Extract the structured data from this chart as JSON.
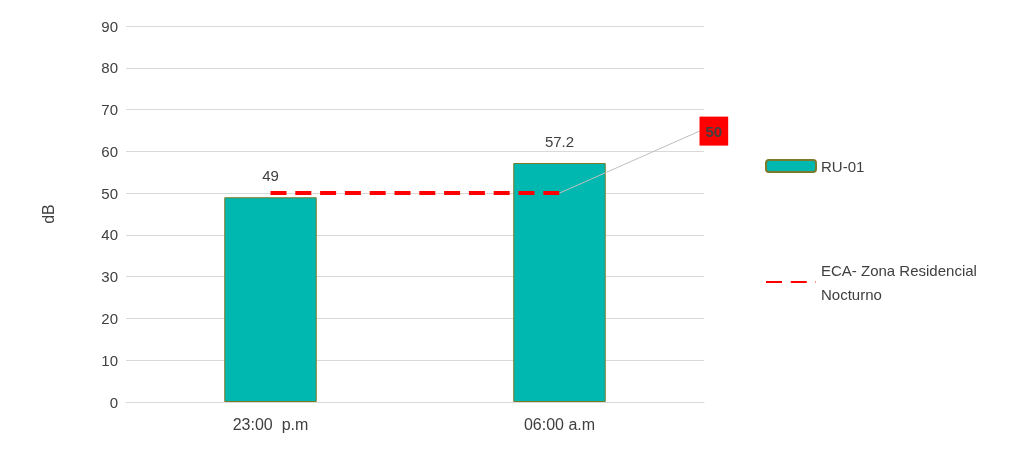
{
  "chart_data": {
    "type": "bar",
    "ylabel": "dB",
    "categories": [
      "23:00  p.m",
      "06:00 a.m"
    ],
    "series": [
      {
        "name": "RU-01",
        "color": "#00b8b0",
        "values": [
          49,
          57.2
        ],
        "value_labels": [
          "49",
          "57.2"
        ]
      },
      {
        "name": "ECA- Zona Residencial Nocturno",
        "type": "line",
        "color": "#ff0000",
        "values": [
          50,
          50
        ],
        "value_labels": [
          null,
          "50"
        ],
        "line_style": "dashed",
        "marker": "none"
      }
    ],
    "ylim": [
      0,
      90
    ],
    "yticks": [
      0,
      10,
      20,
      30,
      40,
      50,
      60,
      70,
      80,
      90
    ],
    "grid": "y",
    "legend": "right"
  }
}
